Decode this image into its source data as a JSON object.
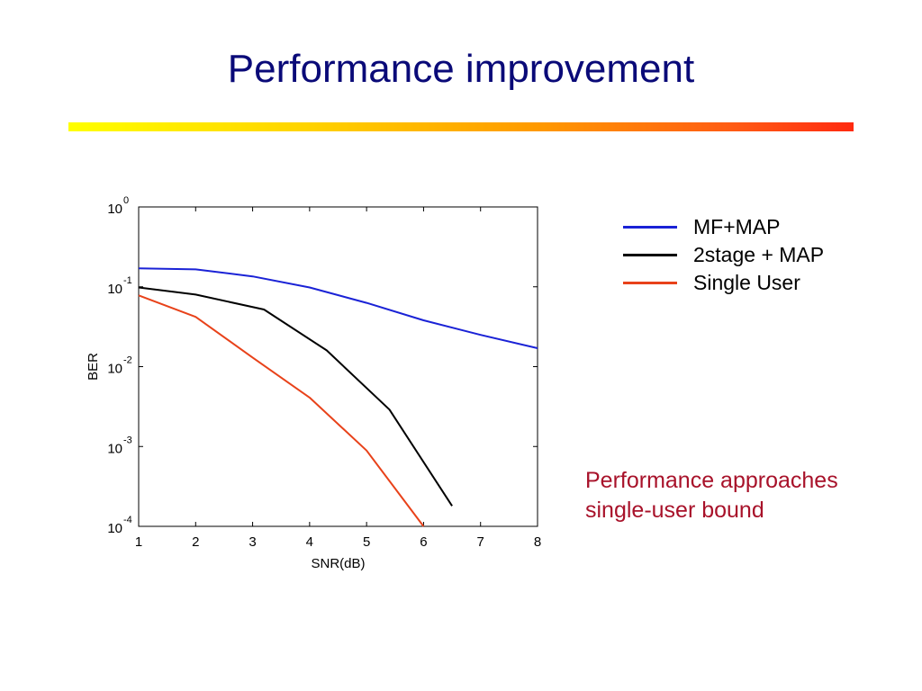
{
  "slide": {
    "title": "Performance improvement",
    "note_lines": [
      "Performance approaches",
      "single-user bound"
    ],
    "colors": {
      "title": "#0a0a78",
      "note": "#a8122a",
      "rule_start": "#ffff00",
      "rule_end": "#ff2a10"
    }
  },
  "chart_data": {
    "type": "line",
    "xlabel": "SNR(dB)",
    "ylabel": "BER",
    "xlim": [
      1,
      8
    ],
    "xticks": [
      "1",
      "2",
      "3",
      "4",
      "5",
      "6",
      "7",
      "8"
    ],
    "ylim": [
      0.0001,
      1
    ],
    "yscale": "log",
    "yticks": [
      {
        "base": "10",
        "exp": "0"
      },
      {
        "base": "10",
        "exp": "-1"
      },
      {
        "base": "10",
        "exp": "-2"
      },
      {
        "base": "10",
        "exp": "-3"
      },
      {
        "base": "10",
        "exp": "-4"
      }
    ],
    "grid": false,
    "legend_position": "right",
    "series": [
      {
        "name": "MF+MAP",
        "color": "#1a22d6",
        "x": [
          1,
          2,
          3,
          4,
          5,
          6,
          7,
          8
        ],
        "y": [
          0.17,
          0.165,
          0.135,
          0.098,
          0.063,
          0.038,
          0.025,
          0.017
        ]
      },
      {
        "name": "2stage + MAP",
        "color": "#000000",
        "x": [
          1,
          2,
          3.2,
          4.3,
          5.4,
          6.5
        ],
        "y": [
          0.098,
          0.08,
          0.052,
          0.016,
          0.0029,
          0.00018
        ]
      },
      {
        "name": "Single User",
        "color": "#e8421a",
        "x": [
          1,
          2,
          3,
          4,
          5,
          6
        ],
        "y": [
          0.078,
          0.042,
          0.013,
          0.0041,
          0.00089,
          0.0001
        ]
      }
    ]
  }
}
